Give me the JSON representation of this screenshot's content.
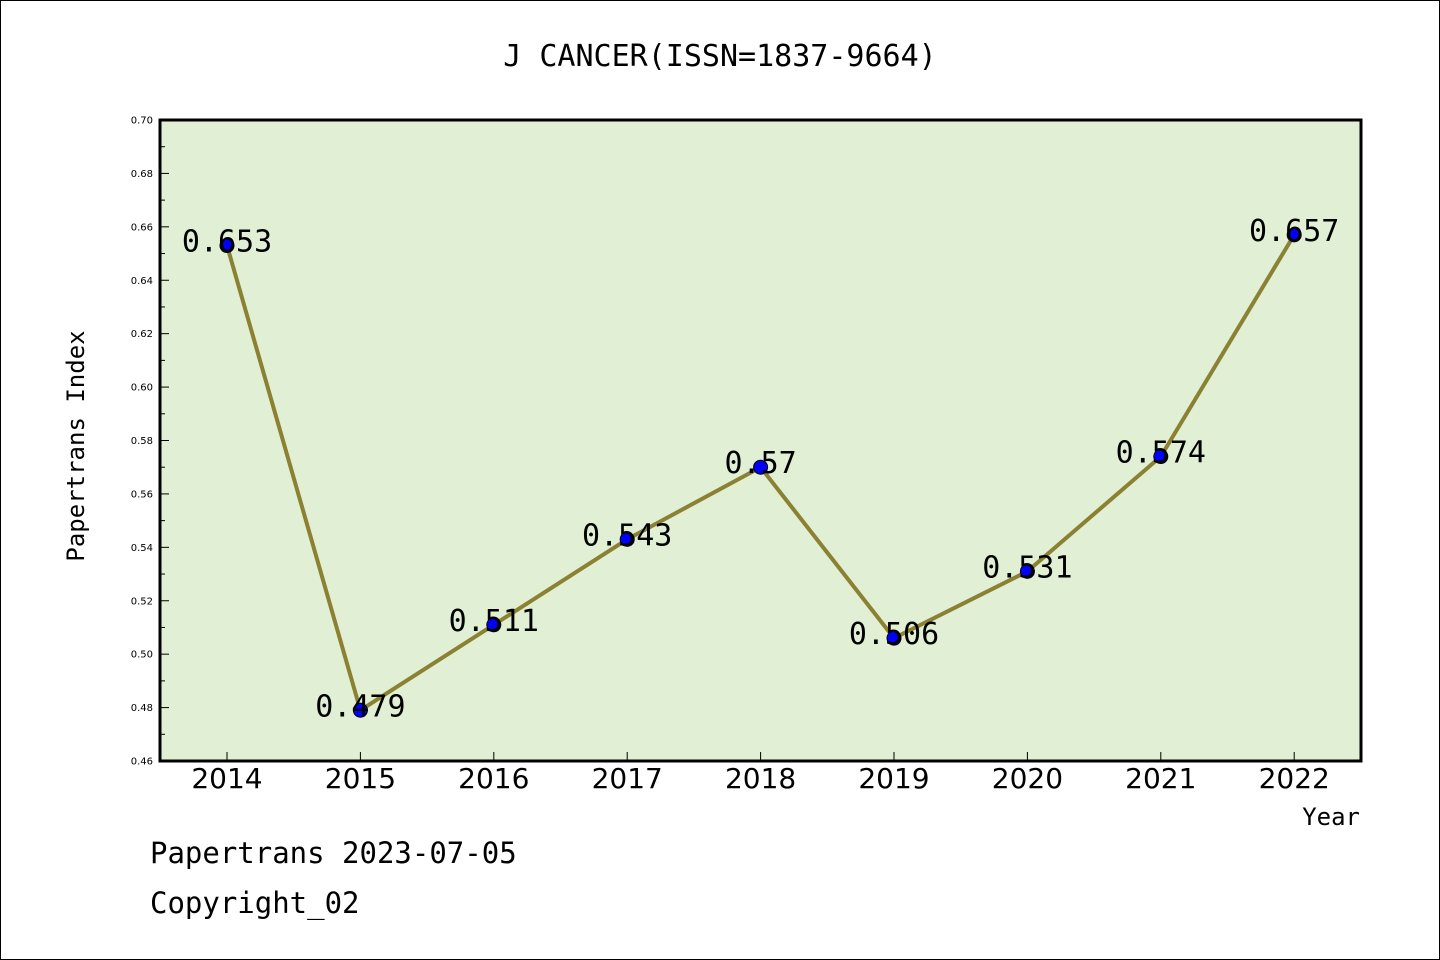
{
  "chart_data": {
    "type": "line",
    "title": "J CANCER(ISSN=1837-9664)",
    "xlabel": "Year",
    "ylabel": "Papertrans Index",
    "categories": [
      "2014",
      "2015",
      "2016",
      "2017",
      "2018",
      "2019",
      "2020",
      "2021",
      "2022"
    ],
    "series": [
      {
        "values": [
          0.653,
          0.479,
          0.511,
          0.543,
          0.57,
          0.506,
          0.531,
          0.574,
          0.657
        ]
      }
    ],
    "data_labels": [
      "0.653",
      "0.479",
      "0.511",
      "0.543",
      "0.57",
      "0.506",
      "0.531",
      "0.574",
      "0.657"
    ],
    "ylim": [
      0.46,
      0.7
    ],
    "yticks": [
      "0.46",
      "0.48",
      "0.50",
      "0.52",
      "0.54",
      "0.56",
      "0.58",
      "0.60",
      "0.62",
      "0.64",
      "0.66",
      "0.68",
      "0.70"
    ],
    "grid": false,
    "legend": "none",
    "colors": {
      "plot_background": "#e1efd4",
      "line": "#8b8132",
      "marker": "#0000ff"
    }
  },
  "footer": {
    "line1": "Papertrans 2023-07-05",
    "line2": "Copyright_02"
  }
}
